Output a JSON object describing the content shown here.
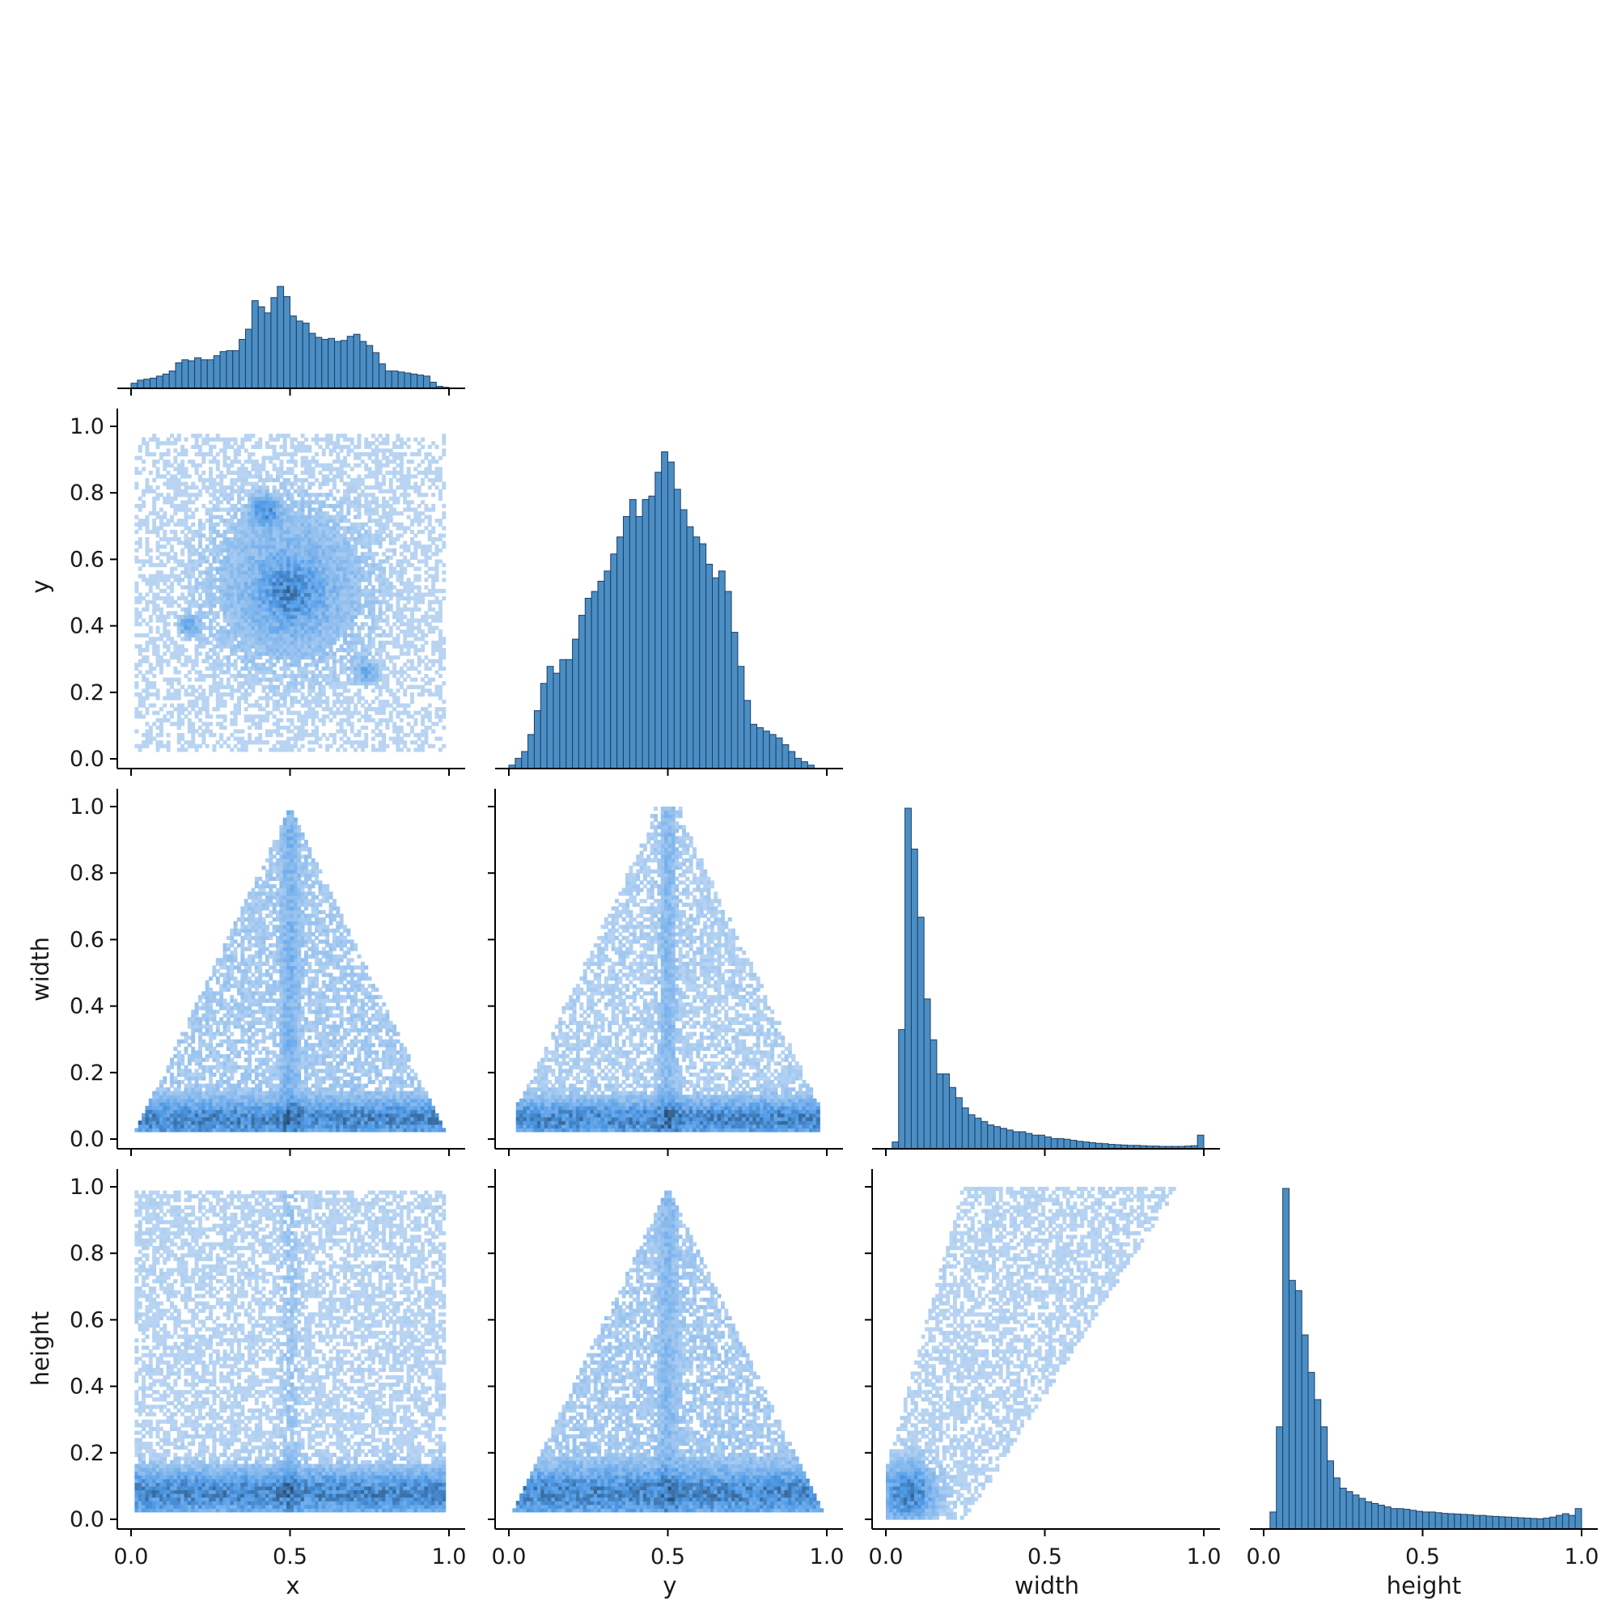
{
  "chart_data": {
    "type": "pairplot",
    "variables": [
      "x",
      "y",
      "width",
      "height"
    ],
    "layout": "lower-triangle (corner)",
    "diagonal": "histogram",
    "off_diagonal": "2d histogram",
    "axis_range": [
      0.0,
      1.0
    ],
    "x_ticks": [
      "0.0",
      "0.5",
      "1.0"
    ],
    "y_ticks": [
      "0.0",
      "0.2",
      "0.4",
      "0.6",
      "0.8",
      "1.0"
    ],
    "colors": {
      "hist_fill": "#4a8ec4",
      "hist_edge": "#1f3f66",
      "density_low": "#b8d4f2",
      "density_mid": "#4f9be8",
      "density_high": "#2c4f73"
    },
    "histograms": {
      "x": {
        "bins": 50,
        "range": [
          0.0,
          1.0
        ],
        "relative_heights": [
          0.05,
          0.08,
          0.09,
          0.1,
          0.12,
          0.14,
          0.17,
          0.25,
          0.28,
          0.27,
          0.3,
          0.28,
          0.28,
          0.32,
          0.36,
          0.37,
          0.37,
          0.48,
          0.58,
          0.86,
          0.8,
          0.74,
          0.89,
          1.0,
          0.9,
          0.71,
          0.66,
          0.64,
          0.54,
          0.5,
          0.48,
          0.49,
          0.46,
          0.47,
          0.51,
          0.53,
          0.46,
          0.42,
          0.35,
          0.24,
          0.17,
          0.17,
          0.16,
          0.15,
          0.14,
          0.13,
          0.12,
          0.06,
          0.02,
          0.01
        ]
      },
      "y": {
        "bins": 50,
        "range": [
          0.0,
          1.0
        ],
        "relative_heights": [
          0.01,
          0.03,
          0.05,
          0.1,
          0.17,
          0.25,
          0.3,
          0.28,
          0.32,
          0.32,
          0.38,
          0.45,
          0.5,
          0.52,
          0.55,
          0.58,
          0.63,
          0.68,
          0.74,
          0.79,
          0.74,
          0.79,
          0.8,
          0.87,
          0.93,
          0.9,
          0.82,
          0.76,
          0.71,
          0.68,
          0.66,
          0.6,
          0.56,
          0.58,
          0.52,
          0.4,
          0.3,
          0.2,
          0.13,
          0.12,
          0.11,
          0.1,
          0.09,
          0.07,
          0.05,
          0.03,
          0.02,
          0.01,
          0.0,
          0.0
        ]
      },
      "width": {
        "bins": 50,
        "range": [
          0.0,
          1.0
        ],
        "relative_heights": [
          0.0,
          0.02,
          0.35,
          1.0,
          0.88,
          0.68,
          0.44,
          0.32,
          0.22,
          0.22,
          0.18,
          0.15,
          0.12,
          0.1,
          0.09,
          0.08,
          0.07,
          0.065,
          0.06,
          0.055,
          0.05,
          0.05,
          0.045,
          0.04,
          0.04,
          0.035,
          0.03,
          0.03,
          0.028,
          0.025,
          0.022,
          0.02,
          0.018,
          0.016,
          0.015,
          0.013,
          0.012,
          0.011,
          0.01,
          0.01,
          0.009,
          0.008,
          0.008,
          0.007,
          0.007,
          0.007,
          0.007,
          0.008,
          0.009,
          0.04
        ]
      },
      "height": {
        "bins": 50,
        "range": [
          0.0,
          1.0
        ],
        "relative_heights": [
          0.0,
          0.05,
          0.3,
          1.0,
          0.73,
          0.7,
          0.57,
          0.46,
          0.38,
          0.3,
          0.2,
          0.15,
          0.12,
          0.11,
          0.1,
          0.09,
          0.08,
          0.075,
          0.07,
          0.065,
          0.06,
          0.06,
          0.058,
          0.055,
          0.052,
          0.05,
          0.05,
          0.048,
          0.046,
          0.045,
          0.044,
          0.043,
          0.042,
          0.04,
          0.04,
          0.038,
          0.037,
          0.036,
          0.035,
          0.034,
          0.033,
          0.032,
          0.031,
          0.03,
          0.032,
          0.035,
          0.04,
          0.045,
          0.04,
          0.06
        ]
      }
    },
    "joint_histograms": [
      {
        "x_var": "x",
        "y_var": "y",
        "shape": "roughly circular cloud centred near (0.5, 0.5)"
      },
      {
        "x_var": "x",
        "y_var": "width",
        "shape": "triangle with apex near (0.5, 1.0)"
      },
      {
        "x_var": "y",
        "y_var": "width",
        "shape": "widening cloud concentrated below 0.2"
      },
      {
        "x_var": "x",
        "y_var": "height",
        "shape": "dense band below 0.2 with sparse cloud above"
      },
      {
        "x_var": "y",
        "y_var": "height",
        "shape": "triangle with apex near (0.5, 1.0)"
      },
      {
        "x_var": "width",
        "y_var": "height",
        "shape": "dense near origin, spreading toward upper right"
      }
    ]
  },
  "labels": {
    "x": "x",
    "y": "y",
    "width": "width",
    "height": "height"
  }
}
